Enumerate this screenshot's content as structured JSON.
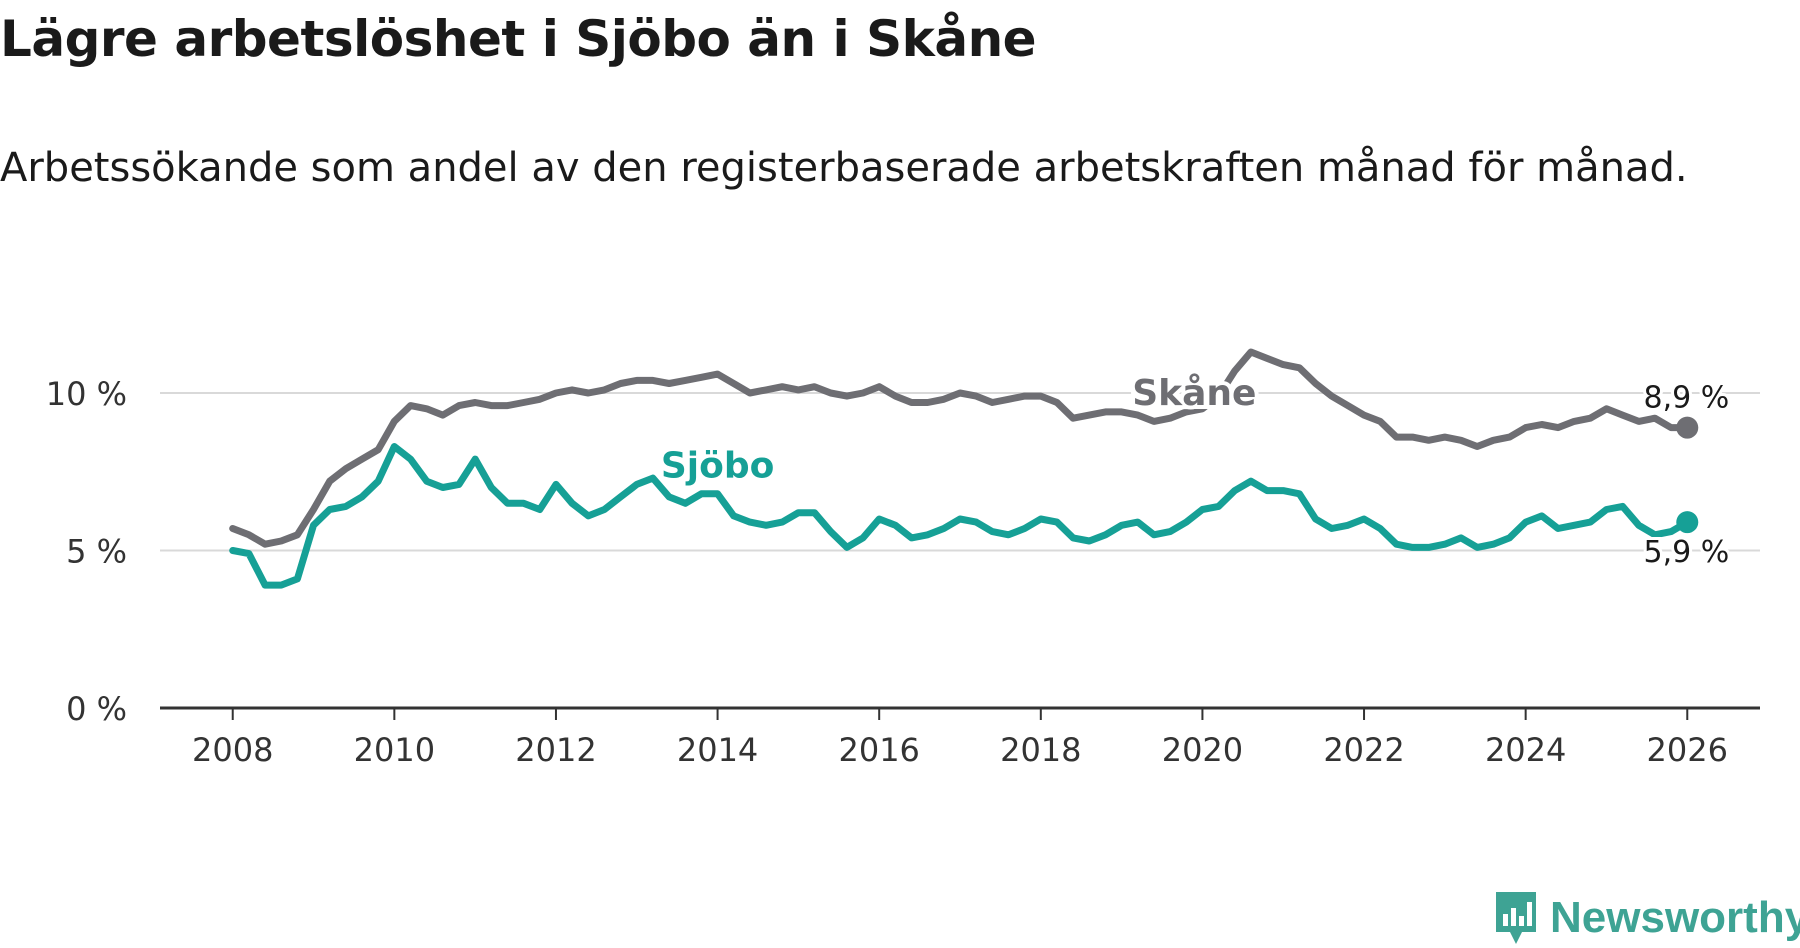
{
  "title": "Lägre arbetslöshet i Sjöbo än i Skåne",
  "subtitle": "Arbetssökande som andel av den registerbaserade arbetskraften månad för månad.",
  "brand": {
    "name": "Newsworthy",
    "color": "#3ea394",
    "icon": "newsworthy-logo-icon"
  },
  "chart_data": {
    "type": "line",
    "title": "Lägre arbetslöshet i Sjöbo än i Skåne",
    "xlabel": "",
    "ylabel": "",
    "xlim": [
      2007.1,
      2026.9
    ],
    "ylim": [
      0,
      12
    ],
    "grid": true,
    "y_ticks": [
      0,
      5,
      10
    ],
    "y_tick_labels": [
      "0 %",
      "5 %",
      "10 %"
    ],
    "x_ticks": [
      2008,
      2010,
      2012,
      2014,
      2016,
      2018,
      2020,
      2022,
      2024,
      2026
    ],
    "x_tick_labels": [
      "2008",
      "2010",
      "2012",
      "2014",
      "2016",
      "2018",
      "2020",
      "2022",
      "2024",
      "2026"
    ],
    "series": [
      {
        "name": "Skåne",
        "color": "#6e6e73",
        "end_label": "8,9 %",
        "points": [
          [
            2008.0,
            5.7
          ],
          [
            2008.2,
            5.5
          ],
          [
            2008.4,
            5.2
          ],
          [
            2008.6,
            5.3
          ],
          [
            2008.8,
            5.5
          ],
          [
            2009.0,
            6.3
          ],
          [
            2009.2,
            7.2
          ],
          [
            2009.4,
            7.6
          ],
          [
            2009.6,
            7.9
          ],
          [
            2009.8,
            8.2
          ],
          [
            2010.0,
            9.1
          ],
          [
            2010.2,
            9.6
          ],
          [
            2010.4,
            9.5
          ],
          [
            2010.6,
            9.3
          ],
          [
            2010.8,
            9.6
          ],
          [
            2011.0,
            9.7
          ],
          [
            2011.2,
            9.6
          ],
          [
            2011.4,
            9.6
          ],
          [
            2011.6,
            9.7
          ],
          [
            2011.8,
            9.8
          ],
          [
            2012.0,
            10.0
          ],
          [
            2012.2,
            10.1
          ],
          [
            2012.4,
            10.0
          ],
          [
            2012.6,
            10.1
          ],
          [
            2012.8,
            10.3
          ],
          [
            2013.0,
            10.4
          ],
          [
            2013.2,
            10.4
          ],
          [
            2013.4,
            10.3
          ],
          [
            2013.6,
            10.4
          ],
          [
            2013.8,
            10.5
          ],
          [
            2014.0,
            10.6
          ],
          [
            2014.2,
            10.3
          ],
          [
            2014.4,
            10.0
          ],
          [
            2014.6,
            10.1
          ],
          [
            2014.8,
            10.2
          ],
          [
            2015.0,
            10.1
          ],
          [
            2015.2,
            10.2
          ],
          [
            2015.4,
            10.0
          ],
          [
            2015.6,
            9.9
          ],
          [
            2015.8,
            10.0
          ],
          [
            2016.0,
            10.2
          ],
          [
            2016.2,
            9.9
          ],
          [
            2016.4,
            9.7
          ],
          [
            2016.6,
            9.7
          ],
          [
            2016.8,
            9.8
          ],
          [
            2017.0,
            10.0
          ],
          [
            2017.2,
            9.9
          ],
          [
            2017.4,
            9.7
          ],
          [
            2017.6,
            9.8
          ],
          [
            2017.8,
            9.9
          ],
          [
            2018.0,
            9.9
          ],
          [
            2018.2,
            9.7
          ],
          [
            2018.4,
            9.2
          ],
          [
            2018.6,
            9.3
          ],
          [
            2018.8,
            9.4
          ],
          [
            2019.0,
            9.4
          ],
          [
            2019.2,
            9.3
          ],
          [
            2019.4,
            9.1
          ],
          [
            2019.6,
            9.2
          ],
          [
            2019.8,
            9.4
          ],
          [
            2020.0,
            9.5
          ],
          [
            2020.2,
            9.9
          ],
          [
            2020.4,
            10.7
          ],
          [
            2020.6,
            11.3
          ],
          [
            2020.8,
            11.1
          ],
          [
            2021.0,
            10.9
          ],
          [
            2021.2,
            10.8
          ],
          [
            2021.4,
            10.3
          ],
          [
            2021.6,
            9.9
          ],
          [
            2021.8,
            9.6
          ],
          [
            2022.0,
            9.3
          ],
          [
            2022.2,
            9.1
          ],
          [
            2022.4,
            8.6
          ],
          [
            2022.6,
            8.6
          ],
          [
            2022.8,
            8.5
          ],
          [
            2023.0,
            8.6
          ],
          [
            2023.2,
            8.5
          ],
          [
            2023.4,
            8.3
          ],
          [
            2023.6,
            8.5
          ],
          [
            2023.8,
            8.6
          ],
          [
            2024.0,
            8.9
          ],
          [
            2024.2,
            9.0
          ],
          [
            2024.4,
            8.9
          ],
          [
            2024.6,
            9.1
          ],
          [
            2024.8,
            9.2
          ],
          [
            2025.0,
            9.5
          ],
          [
            2025.2,
            9.3
          ],
          [
            2025.4,
            9.1
          ],
          [
            2025.6,
            9.2
          ],
          [
            2025.8,
            8.9
          ],
          [
            2026.0,
            8.9
          ]
        ]
      },
      {
        "name": "Sjöbo",
        "color": "#16a096",
        "end_label": "5,9 %",
        "points": [
          [
            2008.0,
            5.0
          ],
          [
            2008.2,
            4.9
          ],
          [
            2008.4,
            3.9
          ],
          [
            2008.6,
            3.9
          ],
          [
            2008.8,
            4.1
          ],
          [
            2009.0,
            5.8
          ],
          [
            2009.2,
            6.3
          ],
          [
            2009.4,
            6.4
          ],
          [
            2009.6,
            6.7
          ],
          [
            2009.8,
            7.2
          ],
          [
            2010.0,
            8.3
          ],
          [
            2010.2,
            7.9
          ],
          [
            2010.4,
            7.2
          ],
          [
            2010.6,
            7.0
          ],
          [
            2010.8,
            7.1
          ],
          [
            2011.0,
            7.9
          ],
          [
            2011.2,
            7.0
          ],
          [
            2011.4,
            6.5
          ],
          [
            2011.6,
            6.5
          ],
          [
            2011.8,
            6.3
          ],
          [
            2012.0,
            7.1
          ],
          [
            2012.2,
            6.5
          ],
          [
            2012.4,
            6.1
          ],
          [
            2012.6,
            6.3
          ],
          [
            2012.8,
            6.7
          ],
          [
            2013.0,
            7.1
          ],
          [
            2013.2,
            7.3
          ],
          [
            2013.4,
            6.7
          ],
          [
            2013.6,
            6.5
          ],
          [
            2013.8,
            6.8
          ],
          [
            2014.0,
            6.8
          ],
          [
            2014.2,
            6.1
          ],
          [
            2014.4,
            5.9
          ],
          [
            2014.6,
            5.8
          ],
          [
            2014.8,
            5.9
          ],
          [
            2015.0,
            6.2
          ],
          [
            2015.2,
            6.2
          ],
          [
            2015.4,
            5.6
          ],
          [
            2015.6,
            5.1
          ],
          [
            2015.8,
            5.4
          ],
          [
            2016.0,
            6.0
          ],
          [
            2016.2,
            5.8
          ],
          [
            2016.4,
            5.4
          ],
          [
            2016.6,
            5.5
          ],
          [
            2016.8,
            5.7
          ],
          [
            2017.0,
            6.0
          ],
          [
            2017.2,
            5.9
          ],
          [
            2017.4,
            5.6
          ],
          [
            2017.6,
            5.5
          ],
          [
            2017.8,
            5.7
          ],
          [
            2018.0,
            6.0
          ],
          [
            2018.2,
            5.9
          ],
          [
            2018.4,
            5.4
          ],
          [
            2018.6,
            5.3
          ],
          [
            2018.8,
            5.5
          ],
          [
            2019.0,
            5.8
          ],
          [
            2019.2,
            5.9
          ],
          [
            2019.4,
            5.5
          ],
          [
            2019.6,
            5.6
          ],
          [
            2019.8,
            5.9
          ],
          [
            2020.0,
            6.3
          ],
          [
            2020.2,
            6.4
          ],
          [
            2020.4,
            6.9
          ],
          [
            2020.6,
            7.2
          ],
          [
            2020.8,
            6.9
          ],
          [
            2021.0,
            6.9
          ],
          [
            2021.2,
            6.8
          ],
          [
            2021.4,
            6.0
          ],
          [
            2021.6,
            5.7
          ],
          [
            2021.8,
            5.8
          ],
          [
            2022.0,
            6.0
          ],
          [
            2022.2,
            5.7
          ],
          [
            2022.4,
            5.2
          ],
          [
            2022.6,
            5.1
          ],
          [
            2022.8,
            5.1
          ],
          [
            2023.0,
            5.2
          ],
          [
            2023.2,
            5.4
          ],
          [
            2023.4,
            5.1
          ],
          [
            2023.6,
            5.2
          ],
          [
            2023.8,
            5.4
          ],
          [
            2024.0,
            5.9
          ],
          [
            2024.2,
            6.1
          ],
          [
            2024.4,
            5.7
          ],
          [
            2024.6,
            5.8
          ],
          [
            2024.8,
            5.9
          ],
          [
            2025.0,
            6.3
          ],
          [
            2025.2,
            6.4
          ],
          [
            2025.4,
            5.8
          ],
          [
            2025.6,
            5.5
          ],
          [
            2025.8,
            5.6
          ],
          [
            2026.0,
            5.9
          ]
        ]
      }
    ],
    "annotations": [
      {
        "text": "Skåne",
        "series": "Skåne",
        "x": 2019.9,
        "y": 10.0
      },
      {
        "text": "Sjöbo",
        "series": "Sjöbo",
        "x": 2014.0,
        "y": 7.7
      }
    ]
  }
}
